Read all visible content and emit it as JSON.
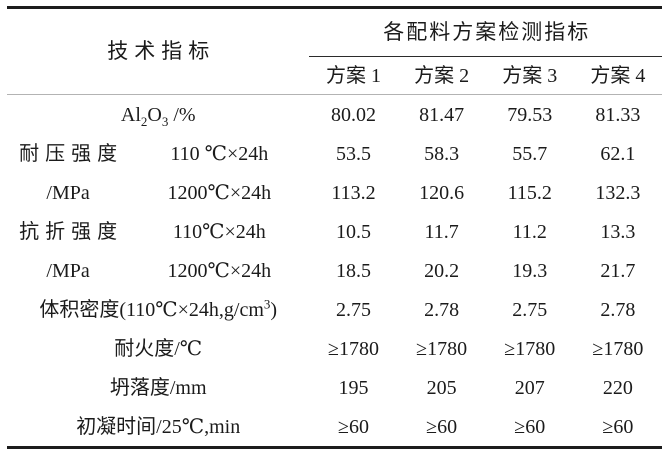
{
  "table": {
    "header": {
      "left_title": "技术指标",
      "group_title": "各配料方案检测指标",
      "schemes": [
        "方案 1",
        "方案 2",
        "方案 3",
        "方案 4"
      ]
    },
    "rows": [
      {
        "label_alumina": {
          "pre": "Al",
          "sub1": "2",
          "mid": "O",
          "sub2": "3",
          "post": " /%"
        },
        "values": [
          "80.02",
          "81.47",
          "79.53",
          "81.33"
        ]
      },
      {
        "label": "耐压强度",
        "condition": "110 ℃×24h",
        "values": [
          "53.5",
          "58.3",
          "55.7",
          "62.1"
        ]
      },
      {
        "label": "/MPa",
        "condition": "1200℃×24h",
        "values": [
          "113.2",
          "120.6",
          "115.2",
          "132.3"
        ]
      },
      {
        "label": "抗折强度",
        "condition": "110℃×24h",
        "values": [
          "10.5",
          "11.7",
          "11.2",
          "13.3"
        ]
      },
      {
        "label": "/MPa",
        "condition": "1200℃×24h",
        "values": [
          "18.5",
          "20.2",
          "19.3",
          "21.7"
        ]
      },
      {
        "label_density": {
          "pre": "体积密度(110℃×24h,g/cm",
          "sup": "3",
          "post": ")"
        },
        "values": [
          "2.75",
          "2.78",
          "2.75",
          "2.78"
        ]
      },
      {
        "label": "耐火度/℃",
        "values": [
          "≥1780",
          "≥1780",
          "≥1780",
          "≥1780"
        ]
      },
      {
        "label": "坍落度/mm",
        "values": [
          "195",
          "205",
          "207",
          "220"
        ]
      },
      {
        "label": "初凝时间/25℃,min",
        "values": [
          "≥60",
          "≥60",
          "≥60",
          "≥60"
        ]
      }
    ]
  }
}
